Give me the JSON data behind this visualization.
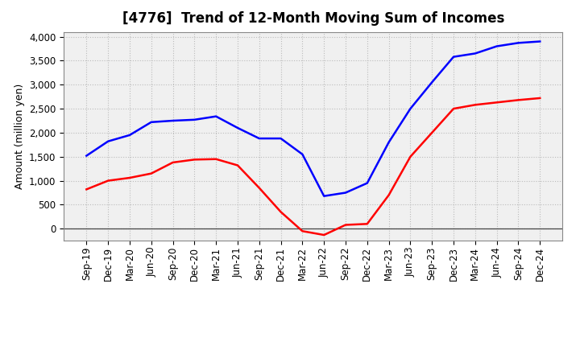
{
  "title": "[4776]  Trend of 12-Month Moving Sum of Incomes",
  "ylabel": "Amount (million yen)",
  "background_color": "#ffffff",
  "grid_color": "#bbbbbb",
  "plot_bg_color": "#f0f0f0",
  "x_labels": [
    "Sep-19",
    "Dec-19",
    "Mar-20",
    "Jun-20",
    "Sep-20",
    "Dec-20",
    "Mar-21",
    "Jun-21",
    "Sep-21",
    "Dec-21",
    "Mar-22",
    "Jun-22",
    "Sep-22",
    "Dec-22",
    "Mar-23",
    "Jun-23",
    "Sep-23",
    "Dec-23",
    "Mar-24",
    "Jun-24",
    "Sep-24",
    "Dec-24"
  ],
  "ordinary_income": [
    1520,
    1820,
    1950,
    2220,
    2250,
    2270,
    2340,
    2100,
    1880,
    1880,
    1550,
    680,
    750,
    950,
    1800,
    2500,
    3050,
    3580,
    3650,
    3800,
    3870,
    3900
  ],
  "net_income": [
    820,
    1000,
    1060,
    1150,
    1380,
    1440,
    1450,
    1320,
    850,
    350,
    -50,
    -130,
    80,
    100,
    700,
    1500,
    2000,
    2500,
    2580,
    2630,
    2680,
    2720
  ],
  "ordinary_color": "#0000ff",
  "net_color": "#ff0000",
  "ylim": [
    -250,
    4100
  ],
  "yticks": [
    0,
    500,
    1000,
    1500,
    2000,
    2500,
    3000,
    3500,
    4000
  ],
  "line_width": 1.8,
  "title_fontsize": 12,
  "axis_fontsize": 9,
  "tick_fontsize": 8.5,
  "legend_fontsize": 9.5
}
